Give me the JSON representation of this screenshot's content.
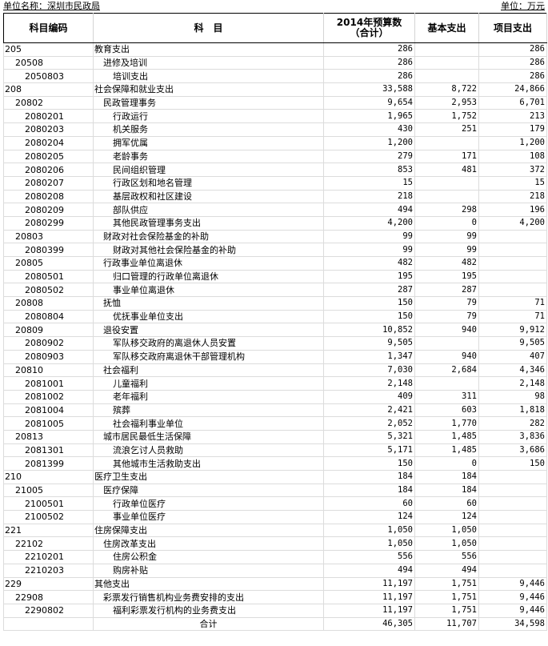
{
  "header": {
    "unit_name": "单位名称：深圳市民政局",
    "unit": "单位：万元"
  },
  "columns": [
    "科目编码",
    "科　目",
    "2014年预算数\n（合计）",
    "基本支出",
    "项目支出"
  ],
  "rows": [
    {
      "code": "205",
      "name": "教育支出",
      "total": "286",
      "basic": "",
      "project": "286"
    },
    {
      "code": "20508",
      "name": "进修及培训",
      "total": "286",
      "basic": "",
      "project": "286"
    },
    {
      "code": "2050803",
      "name": "培训支出",
      "total": "286",
      "basic": "",
      "project": "286"
    },
    {
      "code": "208",
      "name": "社会保障和就业支出",
      "total": "33,588",
      "basic": "8,722",
      "project": "24,866"
    },
    {
      "code": "20802",
      "name": "民政管理事务",
      "total": "9,654",
      "basic": "2,953",
      "project": "6,701"
    },
    {
      "code": "2080201",
      "name": "行政运行",
      "total": "1,965",
      "basic": "1,752",
      "project": "213"
    },
    {
      "code": "2080203",
      "name": "机关服务",
      "total": "430",
      "basic": "251",
      "project": "179"
    },
    {
      "code": "2080204",
      "name": "拥军优属",
      "total": "1,200",
      "basic": "",
      "project": "1,200"
    },
    {
      "code": "2080205",
      "name": "老龄事务",
      "total": "279",
      "basic": "171",
      "project": "108"
    },
    {
      "code": "2080206",
      "name": "民间组织管理",
      "total": "853",
      "basic": "481",
      "project": "372"
    },
    {
      "code": "2080207",
      "name": "行政区划和地名管理",
      "total": "15",
      "basic": "",
      "project": "15"
    },
    {
      "code": "2080208",
      "name": "基层政权和社区建设",
      "total": "218",
      "basic": "",
      "project": "218"
    },
    {
      "code": "2080209",
      "name": "部队供应",
      "total": "494",
      "basic": "298",
      "project": "196"
    },
    {
      "code": "2080299",
      "name": "其他民政管理事务支出",
      "total": "4,200",
      "basic": "0",
      "project": "4,200"
    },
    {
      "code": "20803",
      "name": "财政对社会保险基金的补助",
      "total": "99",
      "basic": "99",
      "project": ""
    },
    {
      "code": "2080399",
      "name": "财政对其他社会保险基金的补助",
      "total": "99",
      "basic": "99",
      "project": ""
    },
    {
      "code": "20805",
      "name": "行政事业单位离退休",
      "total": "482",
      "basic": "482",
      "project": ""
    },
    {
      "code": "2080501",
      "name": "归口管理的行政单位离退休",
      "total": "195",
      "basic": "195",
      "project": ""
    },
    {
      "code": "2080502",
      "name": "事业单位离退休",
      "total": "287",
      "basic": "287",
      "project": ""
    },
    {
      "code": "20808",
      "name": "抚恤",
      "total": "150",
      "basic": "79",
      "project": "71"
    },
    {
      "code": "2080804",
      "name": "优抚事业单位支出",
      "total": "150",
      "basic": "79",
      "project": "71"
    },
    {
      "code": "20809",
      "name": "退役安置",
      "total": "10,852",
      "basic": "940",
      "project": "9,912"
    },
    {
      "code": "2080902",
      "name": "军队移交政府的离退休人员安置",
      "total": "9,505",
      "basic": "",
      "project": "9,505"
    },
    {
      "code": "2080903",
      "name": "军队移交政府离退休干部管理机构",
      "total": "1,347",
      "basic": "940",
      "project": "407"
    },
    {
      "code": "20810",
      "name": "社会福利",
      "total": "7,030",
      "basic": "2,684",
      "project": "4,346"
    },
    {
      "code": "2081001",
      "name": "儿童福利",
      "total": "2,148",
      "basic": "",
      "project": "2,148"
    },
    {
      "code": "2081002",
      "name": "老年福利",
      "total": "409",
      "basic": "311",
      "project": "98"
    },
    {
      "code": "2081004",
      "name": "殡葬",
      "total": "2,421",
      "basic": "603",
      "project": "1,818"
    },
    {
      "code": "2081005",
      "name": "社会福利事业单位",
      "total": "2,052",
      "basic": "1,770",
      "project": "282"
    },
    {
      "code": "20813",
      "name": "城市居民最低生活保障",
      "total": "5,321",
      "basic": "1,485",
      "project": "3,836"
    },
    {
      "code": "2081301",
      "name": "流浪乞讨人员救助",
      "total": "5,171",
      "basic": "1,485",
      "project": "3,686"
    },
    {
      "code": "2081399",
      "name": "其他城市生活救助支出",
      "total": "150",
      "basic": "0",
      "project": "150"
    },
    {
      "code": "210",
      "name": "医疗卫生支出",
      "total": "184",
      "basic": "184",
      "project": ""
    },
    {
      "code": "21005",
      "name": "医疗保障",
      "total": "184",
      "basic": "184",
      "project": ""
    },
    {
      "code": "2100501",
      "name": "行政单位医疗",
      "total": "60",
      "basic": "60",
      "project": ""
    },
    {
      "code": "2100502",
      "name": "事业单位医疗",
      "total": "124",
      "basic": "124",
      "project": ""
    },
    {
      "code": "221",
      "name": "住房保障支出",
      "total": "1,050",
      "basic": "1,050",
      "project": ""
    },
    {
      "code": "22102",
      "name": "住房改革支出",
      "total": "1,050",
      "basic": "1,050",
      "project": ""
    },
    {
      "code": "2210201",
      "name": "住房公积金",
      "total": "556",
      "basic": "556",
      "project": ""
    },
    {
      "code": "2210203",
      "name": "购房补贴",
      "total": "494",
      "basic": "494",
      "project": ""
    },
    {
      "code": "229",
      "name": "其他支出",
      "total": "11,197",
      "basic": "1,751",
      "project": "9,446"
    },
    {
      "code": "22908",
      "name": "彩票发行销售机构业务费安排的支出",
      "total": "11,197",
      "basic": "1,751",
      "project": "9,446"
    },
    {
      "code": "2290802",
      "name": "福利彩票发行机构的业务费支出",
      "total": "11,197",
      "basic": "1,751",
      "project": "9,446"
    }
  ],
  "summary": {
    "label": "合计",
    "total": "46,305",
    "basic": "11,707",
    "project": "34,598"
  }
}
